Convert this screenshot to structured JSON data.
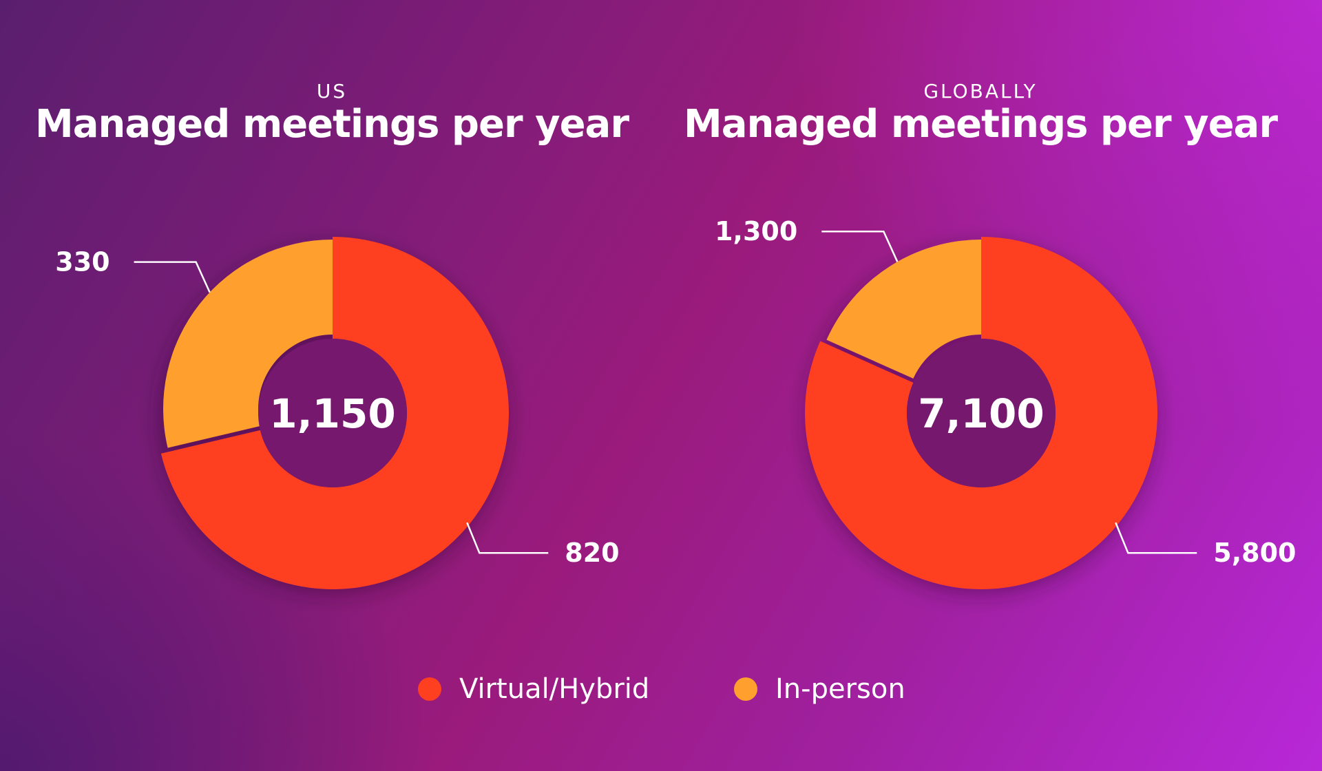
{
  "colors": {
    "virtual": "#ff4020",
    "inperson": "#ffa02e",
    "hole": "#75186e"
  },
  "legend": [
    {
      "label": "Virtual/Hybrid",
      "color": "#ff4020"
    },
    {
      "label": "In-person",
      "color": "#ffa02e"
    }
  ],
  "chart_data": [
    {
      "type": "pie",
      "region": "US",
      "title": "Managed meetings per year",
      "total_label": "1,150",
      "slices": [
        {
          "name": "Virtual/Hybrid",
          "value": 820,
          "label": "820",
          "color": "#ff4020"
        },
        {
          "name": "In-person",
          "value": 330,
          "label": "330",
          "color": "#ffa02e"
        }
      ]
    },
    {
      "type": "pie",
      "region": "GLOBALLY",
      "title": "Managed meetings per year",
      "total_label": "7,100",
      "slices": [
        {
          "name": "Virtual/Hybrid",
          "value": 5800,
          "label": "5,800",
          "color": "#ff4020"
        },
        {
          "name": "In-person",
          "value": 1300,
          "label": "1,300",
          "color": "#ffa02e"
        }
      ]
    }
  ]
}
